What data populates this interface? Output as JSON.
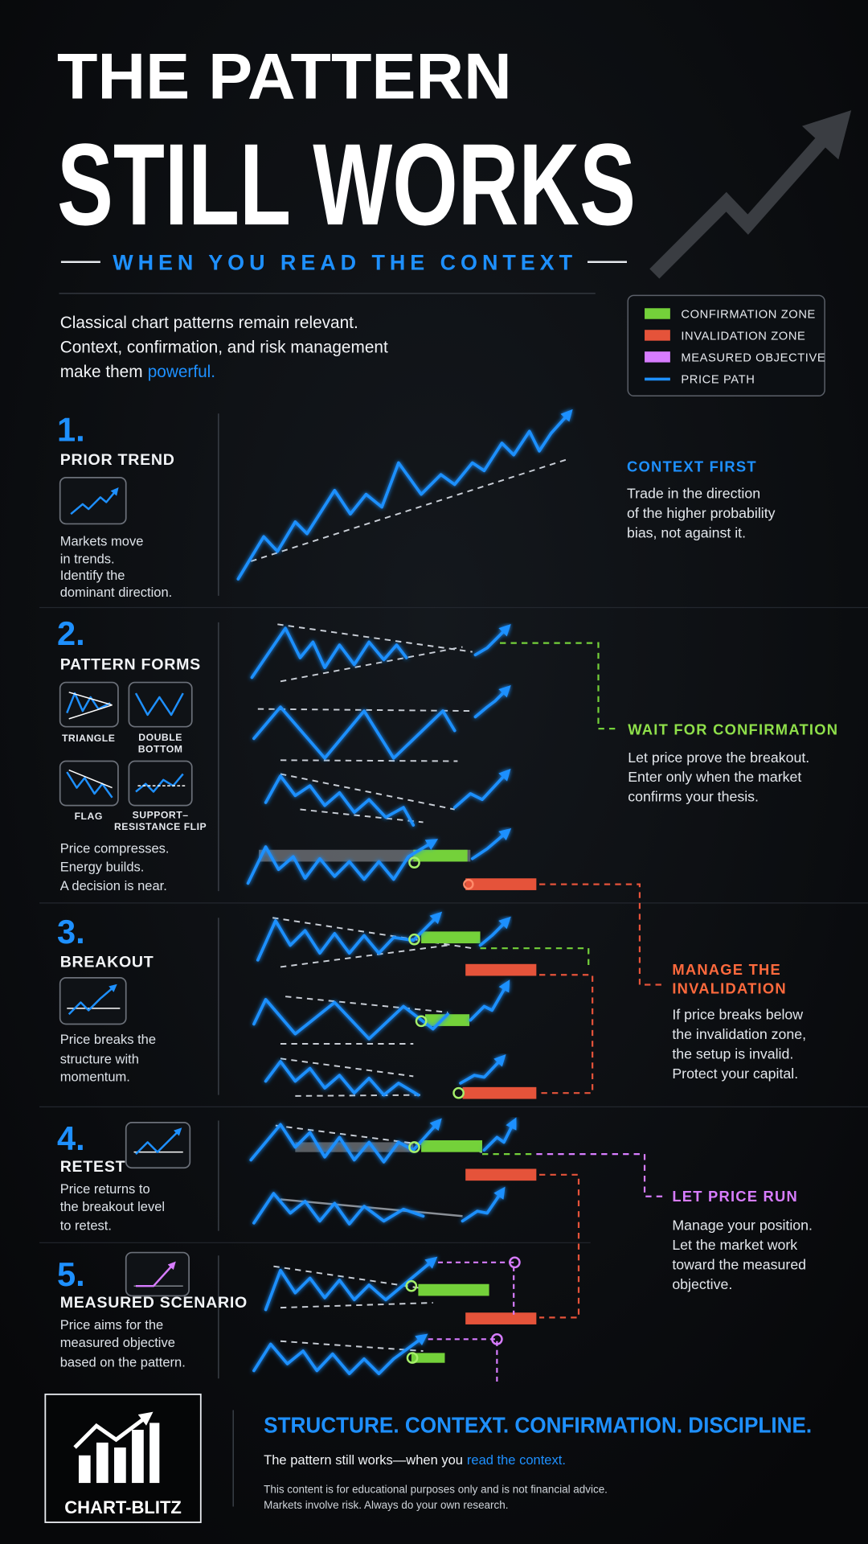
{
  "header": {
    "title_line1": "THE PATTERN",
    "title_line2": "STILL WORKS",
    "subtitle": "WHEN YOU READ THE CONTEXT"
  },
  "intro": {
    "lines": [
      "Classical chart patterns remain relevant.",
      "Context, confirmation, and risk management",
      "make them"
    ],
    "highlight": "powerful."
  },
  "legend": {
    "items": [
      "CONFIRMATION ZONE",
      "INVALIDATION ZONE",
      "MEASURED OBJECTIVE",
      "PRICE PATH"
    ]
  },
  "steps": [
    {
      "number": "1.",
      "title": "PRIOR TREND",
      "text": [
        "Markets move",
        "in trends.",
        "Identify the",
        "dominant direction."
      ]
    },
    {
      "number": "2.",
      "title": "PATTERN FORMS",
      "icons": [
        [
          "TRIANGLE"
        ],
        [
          "DOUBLE",
          "BOTTOM"
        ],
        [
          "FLAG"
        ],
        [
          "SUPPORT–",
          "RESISTANCE FLIP"
        ]
      ],
      "text": [
        "Price compresses.",
        "Energy builds.",
        "A decision is near."
      ]
    },
    {
      "number": "3.",
      "title": "BREAKOUT",
      "text": [
        "Price breaks the",
        "structure with",
        "momentum."
      ]
    },
    {
      "number": "4.",
      "title": "RETEST",
      "text": [
        "Price returns to",
        "the breakout level",
        "to retest."
      ]
    },
    {
      "number": "5.",
      "title": "MEASURED SCENARIO",
      "text": [
        "Price aims for the",
        "measured objective",
        "based on the pattern."
      ]
    }
  ],
  "callouts": [
    {
      "title": [
        "CONTEXT FIRST"
      ],
      "text": [
        "Trade in the direction",
        "of the higher probability",
        "bias, not against it."
      ]
    },
    {
      "title": [
        "WAIT FOR CONFIRMATION"
      ],
      "text": [
        "Let price prove the breakout.",
        "Enter only when the market",
        "confirms your thesis."
      ]
    },
    {
      "title": [
        "MANAGE THE",
        "INVALIDATION"
      ],
      "text": [
        "If price breaks below",
        "the invalidation zone,",
        "the setup is invalid.",
        "Protect your capital."
      ]
    },
    {
      "title": [
        "LET PRICE RUN"
      ],
      "text": [
        "Manage your position.",
        "Let the market work",
        "toward the measured",
        "objective."
      ]
    }
  ],
  "footer": {
    "brand": "CHART-BLITZ",
    "tagline": "STRUCTURE. CONTEXT. CONFIRMATION. DISCIPLINE.",
    "line": "The pattern still works—when you",
    "link": "read the context.",
    "disclaimer": [
      "This content is for educational purposes only and is not financial advice.",
      "Markets involve risk. Always do your own research."
    ]
  }
}
